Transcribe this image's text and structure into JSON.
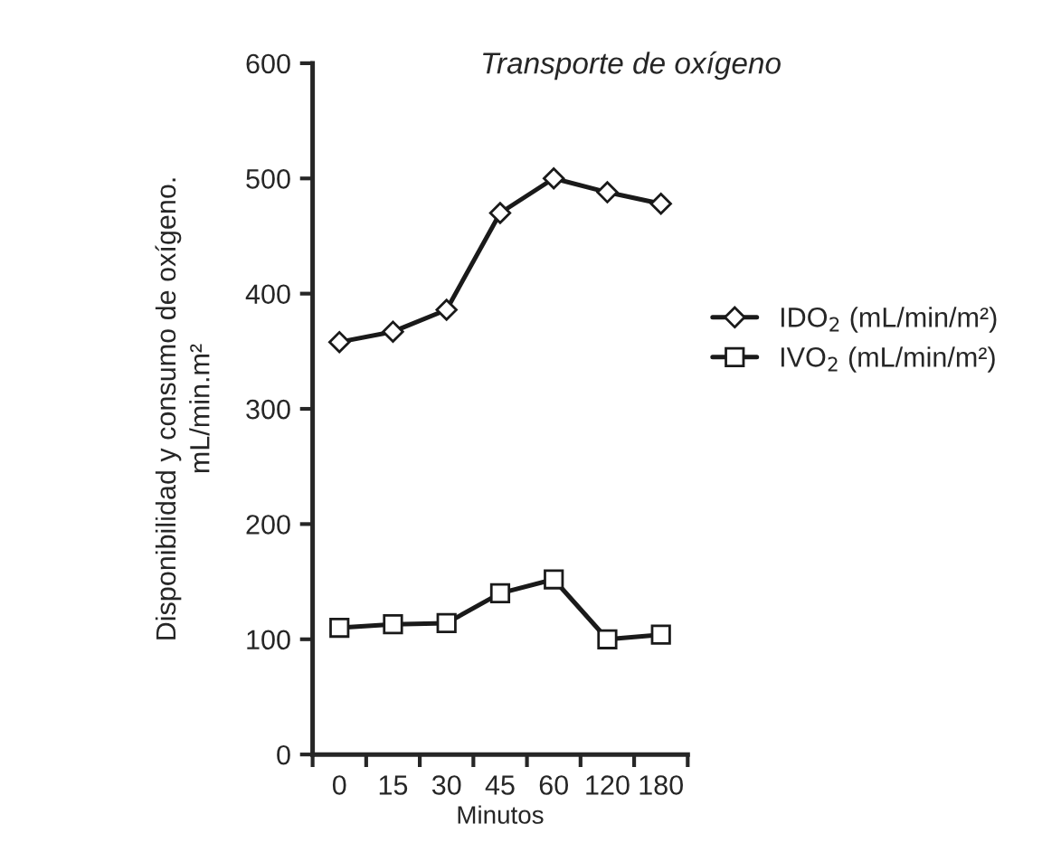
{
  "chart_data": {
    "type": "line",
    "title": "Transporte de oxígeno",
    "xlabel": "Minutos",
    "ylabel": "Disponibilidad y consumo de oxígeno.\nmL/min.m²",
    "categories": [
      "0",
      "15",
      "30",
      "45",
      "60",
      "120",
      "180"
    ],
    "series": [
      {
        "name": "IDO$_{2}$ (mL/min/m²)",
        "color": "#1a1a1a",
        "marker": "diamond",
        "values": [
          358,
          367,
          386,
          470,
          500,
          488,
          478
        ]
      },
      {
        "name": "IVO$_{2}$ (mL/min/m²)",
        "color": "#1a1a1a",
        "marker": "square",
        "values": [
          110,
          113,
          114,
          140,
          152,
          100,
          104
        ]
      }
    ],
    "ylim": [
      0,
      600
    ],
    "yticks": [
      0,
      100,
      200,
      300,
      400,
      500,
      600
    ],
    "grid": false,
    "legend": "right",
    "line_style": "solid"
  }
}
